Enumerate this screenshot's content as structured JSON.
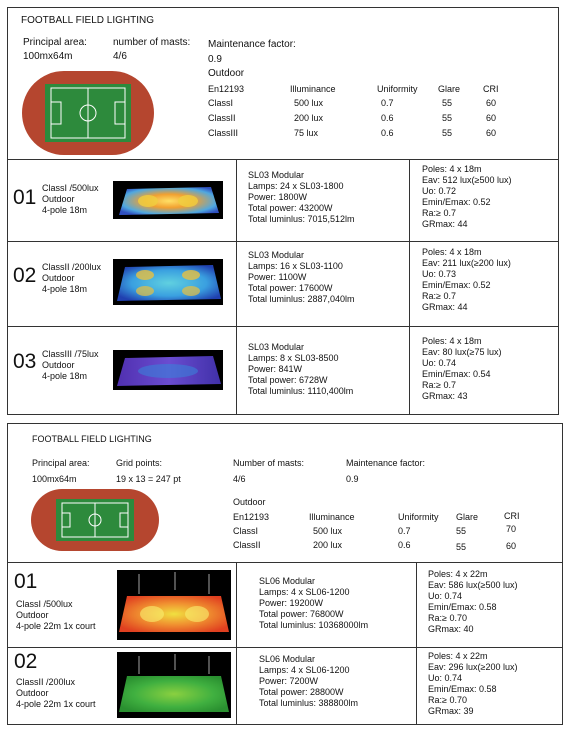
{
  "top": {
    "title": "FOOTBALL FIELD LIGHTING",
    "principal_area_label": "Principal area:",
    "principal_area_value": "100mx64m",
    "masts_label": "number of masts:",
    "masts_value": "4/6",
    "maintenance_label": "Maintenance factor:",
    "maintenance_value": "0.9",
    "outdoor": "Outdoor",
    "table": {
      "headers": [
        "En12193",
        "Illuminance",
        "Uniformity",
        "Glare",
        "CRI"
      ],
      "rows": [
        [
          "ClassI",
          "500  lux",
          "0.7",
          "55",
          "60"
        ],
        [
          "ClassII",
          "200  lux",
          "0.6",
          "55",
          "60"
        ],
        [
          "ClassIII",
          "75  lux",
          "0.6",
          "55",
          "60"
        ]
      ]
    },
    "entries": [
      {
        "num": "01",
        "desc": [
          "ClassI /500lux",
          "Outdoor",
          "4-pole 18m"
        ],
        "specs": [
          "SL03 Modular",
          "Lamps: 24 x SL03-1800",
          "Power: 1800W",
          "Total power: 43200W",
          "Total luminlus: 7015,512lm"
        ],
        "results": [
          "Poles: 4 x 18m",
          "Eav: 512 lux(≥500 lux)",
          "Uo: 0.72",
          "Emin/Emax: 0.52",
          "Ra:≥ 0.7",
          "GRmax: 44"
        ]
      },
      {
        "num": "02",
        "desc": [
          "ClassII /200lux",
          "Outdoor",
          "4-pole 18m"
        ],
        "specs": [
          "SL03 Modular",
          "Lamps: 16 x SL03-1100",
          "Power: 1100W",
          "Total power: 17600W",
          "Total luminlus: 2887,040lm"
        ],
        "results": [
          "Poles: 4 x 18m",
          "Eav: 211 lux(≥200 lux)",
          "Uo: 0.73",
          "Emin/Emax: 0.52",
          "Ra:≥ 0.7",
          "GRmax: 44"
        ]
      },
      {
        "num": "03",
        "desc": [
          "ClassIII /75lux",
          "Outdoor",
          "4-pole 18m"
        ],
        "specs": [
          "SL03 Modular",
          "Lamps: 8 x SL03-8500",
          "Power: 841W",
          "Total power: 6728W",
          "Total luminlus: 1110,400lm"
        ],
        "results": [
          "Poles: 4 x 18m",
          "Eav: 80 lux(≥75 lux)",
          "Uo: 0.74",
          "Emin/Emax: 0.54",
          "Ra:≥ 0.7",
          "GRmax: 43"
        ]
      }
    ]
  },
  "bottom": {
    "title": "FOOTBALL FIELD LIGHTING",
    "principal_area_label": "Principal area:",
    "principal_area_value": "100mx64m",
    "grid_label": "Grid points:",
    "grid_value": "19 x 13 = 247 pt",
    "masts_label": "Number of masts:",
    "masts_value": "4/6",
    "maintenance_label": "Maintenance factor:",
    "maintenance_value": "0.9",
    "outdoor": "Outdoor",
    "table": {
      "headers": [
        "En12193",
        "Illuminance",
        "Uniformity",
        "Glare",
        "CRI"
      ],
      "rows": [
        [
          "ClassI",
          "500  lux",
          "0.7",
          "55",
          "70"
        ],
        [
          "ClassII",
          "200  lux",
          "0.6",
          "55",
          "60"
        ]
      ]
    },
    "entries": [
      {
        "num": "01",
        "desc": [
          "ClassI /500lux",
          "Outdoor",
          "4-pole 22m    1x court"
        ],
        "specs": [
          "SL06 Modular",
          "Lamps: 4 x SL06-1200",
          "Power: 19200W",
          "Total power: 76800W",
          "Total luminlus: 10368000lm"
        ],
        "results": [
          "Poles: 4 x 22m",
          "Eav: 586 lux(≥500 lux)",
          "Uo: 0.74",
          "Emin/Emax: 0.58",
          "Ra:≥ 0.70",
          "GRmax: 40"
        ]
      },
      {
        "num": "02",
        "desc": [
          "ClassII /200lux",
          "Outdoor",
          "4-pole 22m   1x court"
        ],
        "specs": [
          "SL06 Modular",
          "Lamps: 4 x SL06-1200",
          "Power: 7200W",
          "Total power: 28800W",
          "Total luminlus: 388800lm"
        ],
        "results": [
          "Poles: 4 x 22m",
          "Eav: 296 lux(≥200 lux)",
          "Uo: 0.74",
          "Emin/Emax: 0.58",
          "Ra:≥ 0.70",
          "GRmax: 39"
        ]
      }
    ]
  },
  "colors": {
    "track": "#b5462f",
    "grass": "#2d8a3c",
    "border": "#333333"
  }
}
